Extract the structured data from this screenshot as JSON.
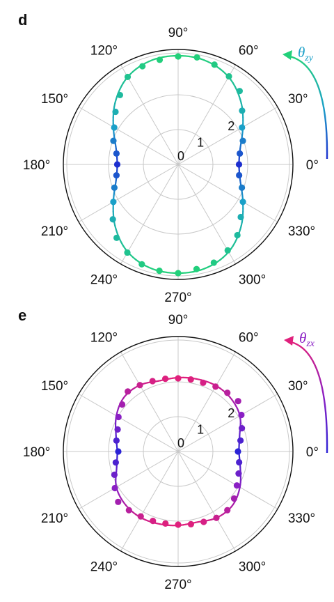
{
  "chart_data": [
    {
      "type": "polar-scatter",
      "panel_label": "d",
      "angle_labels": [
        "0°",
        "30°",
        "60°",
        "90°",
        "120°",
        "150°",
        "180°",
        "210°",
        "240°",
        "270°",
        "300°",
        "330°"
      ],
      "radial_ticks": [
        0,
        1,
        2
      ],
      "radial_tick_labels": [
        "0",
        "1",
        "2"
      ],
      "rmax": 3.3,
      "grid": true,
      "colorbar_symbol": "θ",
      "colorbar_subscript": "zy",
      "colormap": [
        "#1d2fcf",
        "#1aa0c8",
        "#22d07a"
      ],
      "fit_curve": {
        "angles_deg": [
          0,
          15,
          30,
          45,
          60,
          75,
          90,
          105,
          120,
          135,
          150,
          165,
          180,
          195,
          210,
          225,
          240,
          255,
          270,
          285,
          300,
          315,
          330,
          345
        ],
        "r": [
          1.75,
          1.85,
          2.15,
          2.55,
          2.9,
          3.08,
          3.12,
          3.08,
          2.9,
          2.55,
          2.15,
          1.85,
          1.75,
          1.85,
          2.15,
          2.55,
          2.9,
          3.08,
          3.12,
          3.08,
          2.9,
          2.55,
          2.15,
          1.85
        ]
      },
      "points": {
        "angles_deg": [
          0,
          10,
          20,
          30,
          40,
          50,
          60,
          70,
          80,
          90,
          100,
          110,
          120,
          130,
          140,
          150,
          160,
          170,
          180,
          190,
          200,
          210,
          220,
          230,
          240,
          250,
          260,
          270,
          280,
          290,
          300,
          310,
          320,
          330,
          340,
          350
        ],
        "r": [
          1.75,
          1.8,
          1.98,
          2.12,
          2.4,
          2.75,
          2.92,
          3.05,
          3.12,
          3.1,
          3.05,
          3.0,
          2.9,
          2.6,
          2.35,
          2.12,
          1.98,
          1.8,
          1.75,
          1.8,
          1.95,
          2.15,
          2.45,
          2.75,
          2.92,
          3.05,
          3.1,
          3.12,
          3.05,
          3.0,
          2.85,
          2.65,
          2.35,
          2.15,
          1.95,
          1.78
        ]
      }
    },
    {
      "type": "polar-scatter",
      "panel_label": "e",
      "angle_labels": [
        "0°",
        "30°",
        "60°",
        "90°",
        "120°",
        "150°",
        "180°",
        "210°",
        "240°",
        "270°",
        "300°",
        "330°"
      ],
      "radial_ticks": [
        0,
        1,
        2
      ],
      "radial_tick_labels": [
        "0",
        "1",
        "2"
      ],
      "rmax": 3.3,
      "grid": true,
      "colorbar_symbol": "θ",
      "colorbar_subscript": "zx",
      "colormap": [
        "#2b23d6",
        "#8a1fc4",
        "#e0207c"
      ],
      "fit_curve": {
        "angles_deg": [
          0,
          15,
          30,
          45,
          60,
          75,
          90,
          105,
          120,
          135,
          150,
          165,
          180,
          195,
          210,
          225,
          240,
          255,
          270,
          285,
          300,
          315,
          330,
          345
        ],
        "r": [
          1.75,
          1.83,
          2.05,
          2.15,
          2.18,
          2.15,
          2.12,
          2.1,
          2.2,
          2.2,
          2.05,
          1.85,
          1.75,
          1.83,
          2.05,
          2.15,
          2.18,
          2.15,
          2.12,
          2.1,
          2.2,
          2.2,
          2.05,
          1.85
        ]
      },
      "points": {
        "angles_deg": [
          0,
          10,
          20,
          30,
          40,
          50,
          60,
          70,
          80,
          90,
          100,
          110,
          120,
          130,
          140,
          150,
          160,
          170,
          180,
          190,
          200,
          210,
          220,
          230,
          240,
          250,
          260,
          270,
          280,
          290,
          300,
          310,
          320,
          330,
          340,
          350
        ],
        "r": [
          1.72,
          1.82,
          1.95,
          2.1,
          2.25,
          2.2,
          2.15,
          2.1,
          2.1,
          2.1,
          2.12,
          2.15,
          2.2,
          2.25,
          2.1,
          1.98,
          1.85,
          1.8,
          1.72,
          1.82,
          1.95,
          2.1,
          2.25,
          2.2,
          2.15,
          2.12,
          2.1,
          2.1,
          2.12,
          2.15,
          2.2,
          2.2,
          2.1,
          1.95,
          1.85,
          1.78
        ]
      }
    }
  ]
}
